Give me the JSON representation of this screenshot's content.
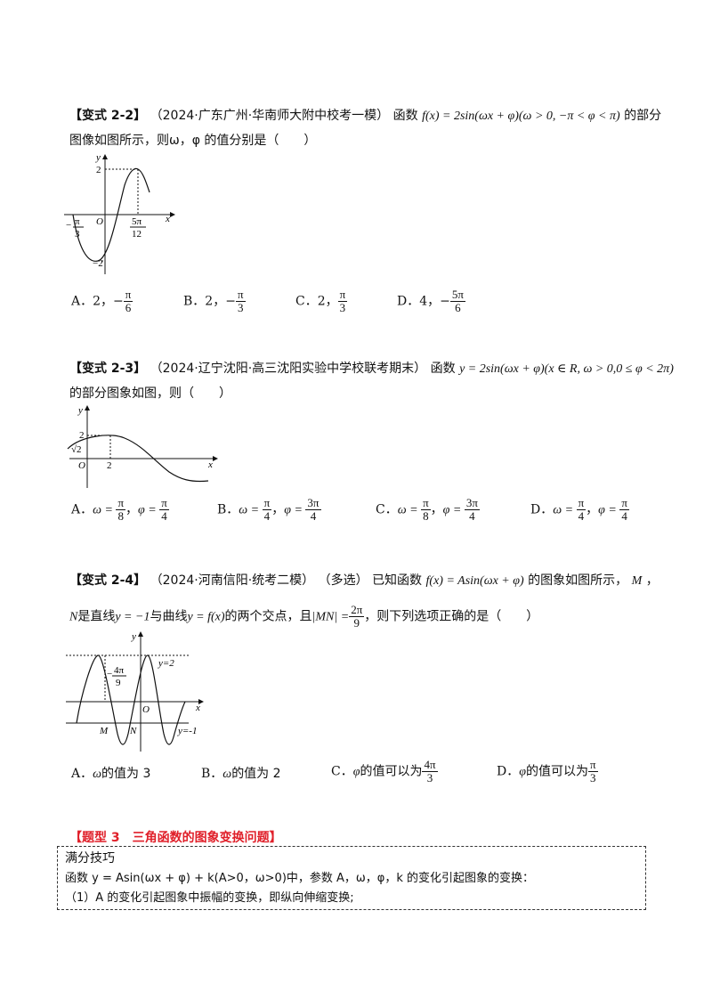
{
  "q22": {
    "tag": "【变式 2-2】",
    "source": "（2024·广东广州·华南师大附中校考一模）",
    "stem_a": "函数",
    "formula": "f(x) = 2sin(ωx + φ)(ω > 0, −π < φ < π)",
    "stem_b": "的部分",
    "line2": "图像如图所示，则ω，φ 的值分别是（　　）",
    "graph": {
      "y": "y",
      "x": "x",
      "o": "O",
      "ymax": "2",
      "ymin": "−2",
      "xl_num": "π",
      "xl_den": "3",
      "xl_sign": "−",
      "xr_num": "5π",
      "xr_den": "12"
    },
    "options": [
      {
        "label": "A．2，",
        "sign": "−",
        "num": "π",
        "den": "6"
      },
      {
        "label": "B．2，",
        "sign": "−",
        "num": "π",
        "den": "3"
      },
      {
        "label": "C．2，",
        "sign": "",
        "num": "π",
        "den": "3"
      },
      {
        "label": "D．4，",
        "sign": "−",
        "num": "5π",
        "den": "6"
      }
    ]
  },
  "q23": {
    "tag": "【变式 2-3】",
    "source": "（2024·辽宁沈阳·高三沈阳实验中学校联考期末）",
    "stem_a": "函数",
    "formula": "y = 2sin(ωx + φ)(x ∈ R, ω > 0,0 ≤ φ < 2π)",
    "line2": "的部分图象如图，则（　　）",
    "graph": {
      "y": "y",
      "x": "x",
      "o": "O",
      "ytop": "2",
      "ymid": "√2",
      "xmark": "2"
    },
    "options": [
      {
        "label": "A．",
        "w_num": "π",
        "w_den": "8",
        "p_num": "π",
        "p_den": "4"
      },
      {
        "label": "B．",
        "w_num": "π",
        "w_den": "4",
        "p_num": "3π",
        "p_den": "4"
      },
      {
        "label": "C．",
        "w_num": "π",
        "w_den": "8",
        "p_num": "3π",
        "p_den": "4"
      },
      {
        "label": "D．",
        "w_num": "π",
        "w_den": "4",
        "p_num": "π",
        "p_den": "4"
      }
    ]
  },
  "q24": {
    "tag": "【变式 2-4】",
    "source": "（2024·河南信阳·统考二模）",
    "multi": "（多选）",
    "stem_a": "已知函数",
    "formula": "f(x) = Asin(ωx + φ)",
    "stem_b": "的图象如图所示，",
    "m": "M",
    "comma": "，",
    "line2a": "N",
    "line2b": "是直线",
    "line2c": "y = −1",
    "line2d": "与曲线",
    "line2e": "y = f(x)",
    "line2f": "的两个交点，且",
    "line2g": "|MN| =",
    "mn_num": "2π",
    "mn_den": "9",
    "line2h": "，则下列选项正确的是（　　）",
    "graph": {
      "y": "y",
      "x": "x",
      "o": "O",
      "y2": "y=2",
      "ym1": "y=-1",
      "m": "M",
      "n": "N",
      "neg": "−",
      "lnum": "4π",
      "lden": "9"
    },
    "options": [
      {
        "label": "A．",
        "var": "ω",
        "text": "的值为 3"
      },
      {
        "label": "B．",
        "var": "ω",
        "text": "的值为 2"
      },
      {
        "label": "C．",
        "var": "φ",
        "text": "的值可以为",
        "num": "4π",
        "den": "3"
      },
      {
        "label": "D．",
        "var": "φ",
        "text": "的值可以为",
        "num": "π",
        "den": "3"
      }
    ]
  },
  "section": {
    "title": "【题型 3　三角函数的图象变换问题】",
    "box_title": "满分技巧",
    "box_line1": "函数 y = Asin(ωx + φ) + k(A>0，ω>0)中，参数 A，ω，φ，k 的变化引起图象的变换：",
    "box_line2": "（1）A 的变化引起图象中振幅的变换，即纵向伸缩变换;"
  }
}
